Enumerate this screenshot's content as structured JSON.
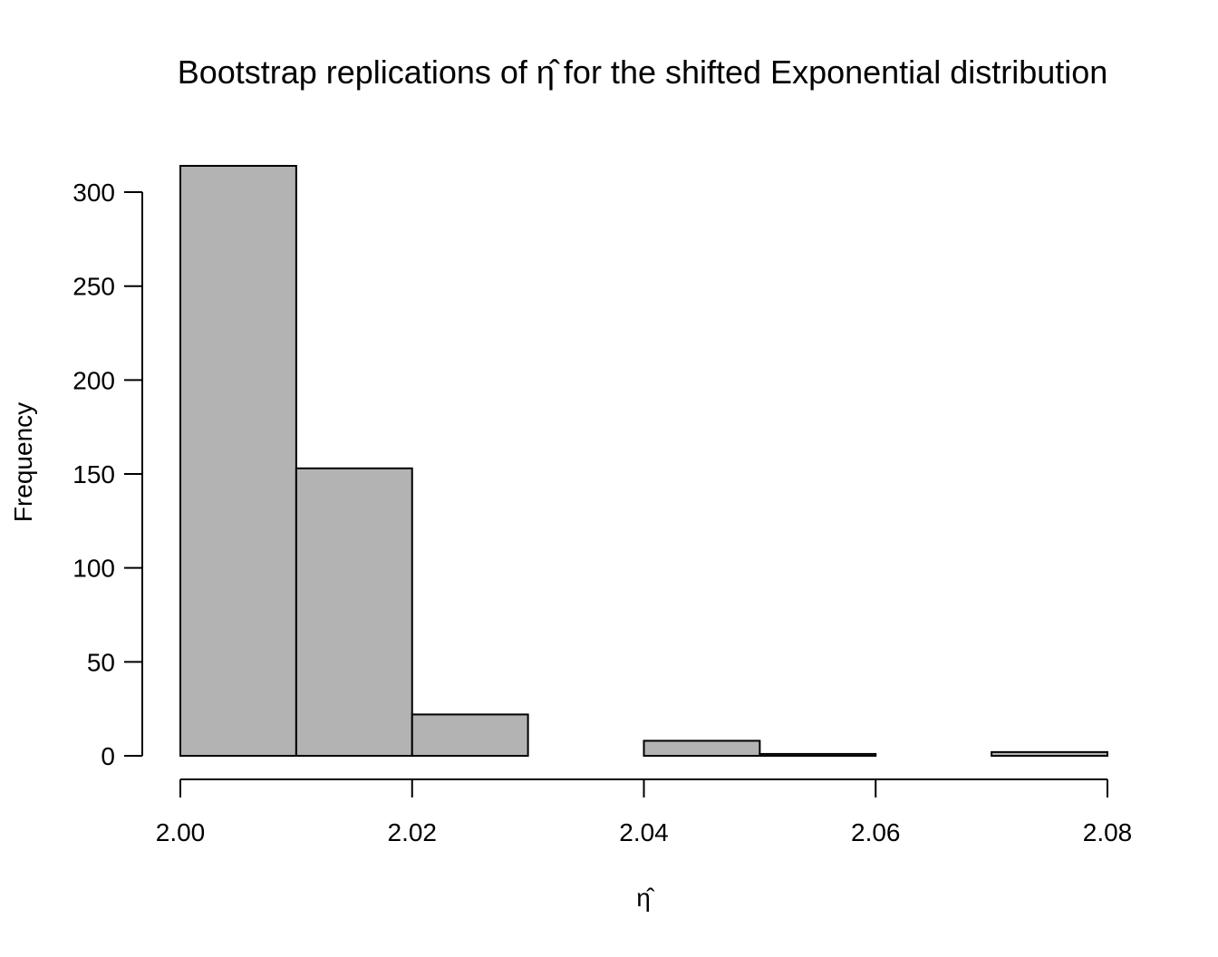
{
  "chart_data": {
    "type": "bar",
    "title": "Bootstrap replications of η̂ for the shifted Exponential distribution",
    "xlabel": "η̂",
    "ylabel": "Frequency",
    "bins": [
      {
        "from": 2.0,
        "to": 2.01,
        "count": 314
      },
      {
        "from": 2.01,
        "to": 2.02,
        "count": 153
      },
      {
        "from": 2.02,
        "to": 2.03,
        "count": 22
      },
      {
        "from": 2.03,
        "to": 2.04,
        "count": 0
      },
      {
        "from": 2.04,
        "to": 2.05,
        "count": 8
      },
      {
        "from": 2.05,
        "to": 2.06,
        "count": 1
      },
      {
        "from": 2.06,
        "to": 2.07,
        "count": 0
      },
      {
        "from": 2.07,
        "to": 2.08,
        "count": 2
      }
    ],
    "xlim": [
      2.0,
      2.08
    ],
    "ylim": [
      0,
      314
    ],
    "x_ticks": [
      "2.00",
      "2.02",
      "2.04",
      "2.06",
      "2.08"
    ],
    "y_ticks": [
      "0",
      "50",
      "100",
      "150",
      "200",
      "250",
      "300"
    ],
    "bar_color": "#b3b3b3",
    "grid": false,
    "legend": "none"
  }
}
